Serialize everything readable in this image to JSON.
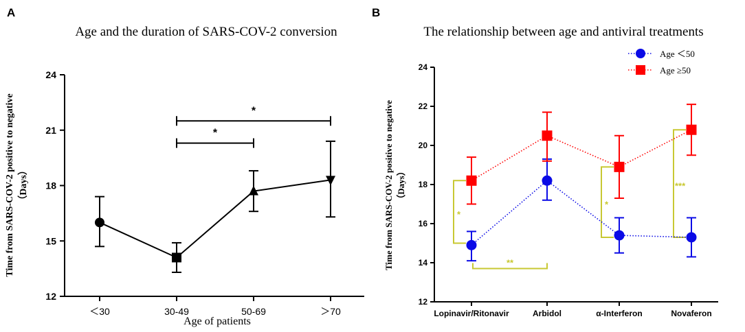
{
  "chart_data": [
    {
      "panel": "A",
      "type": "line",
      "title": "Age and the duration of SARS-COV-2 conversion",
      "xlabel": "Age of patients",
      "ylabel": "Time from SARS-COV-2 positive to negative",
      "ylabel_unit": "（Days）",
      "categories": [
        "＜30",
        "30-49",
        "50-69",
        "＞70"
      ],
      "values": [
        16.0,
        14.1,
        17.7,
        18.3
      ],
      "err_upper": [
        17.4,
        14.9,
        18.8,
        20.4
      ],
      "err_lower": [
        14.7,
        13.3,
        16.6,
        16.3
      ],
      "markers": [
        "circle",
        "square",
        "triangle-up",
        "triangle-down"
      ],
      "ylim": [
        12,
        24
      ],
      "yticks": [
        12,
        15,
        18,
        21,
        24
      ],
      "significance": [
        {
          "from": 1,
          "to": 2,
          "y": 20.3,
          "label": "*"
        },
        {
          "from": 1,
          "to": 3,
          "y": 21.5,
          "label": "*"
        }
      ]
    },
    {
      "panel": "B",
      "type": "line",
      "title": "The relationship between age and antiviral treatments",
      "xlabel": "",
      "ylabel": "Time from SARS-COV-2 positive to negative",
      "ylabel_unit": "（Days）",
      "categories": [
        "Lopinavir/Ritonavir",
        "Arbidol",
        "α-Interferon",
        "Novaferon"
      ],
      "ylim": [
        12,
        24
      ],
      "yticks": [
        12,
        14,
        16,
        18,
        20,
        22,
        24
      ],
      "series": [
        {
          "name": "Age ＜50",
          "color": "#0a0ae6",
          "marker": "circle",
          "values": [
            14.9,
            18.2,
            15.4,
            15.3
          ],
          "err_upper": [
            15.6,
            19.3,
            16.3,
            16.3
          ],
          "err_lower": [
            14.1,
            17.2,
            14.5,
            14.3
          ]
        },
        {
          "name": "Age ≥50",
          "color": "#ff0000",
          "marker": "square",
          "values": [
            18.2,
            20.5,
            18.9,
            20.8
          ],
          "err_upper": [
            19.4,
            21.7,
            20.5,
            22.1
          ],
          "err_lower": [
            17.0,
            19.2,
            17.3,
            19.5
          ]
        }
      ],
      "significance": [
        {
          "kind": "vertical",
          "cat": 0,
          "low": 15.0,
          "high": 18.2,
          "label": "*"
        },
        {
          "kind": "vertical",
          "cat": 2,
          "low": 15.3,
          "high": 18.9,
          "label": "*"
        },
        {
          "kind": "vertical",
          "cat": 3,
          "low": 15.3,
          "high": 20.8,
          "label": "***"
        },
        {
          "kind": "horizontal",
          "from": 0,
          "to": 1,
          "y": 13.7,
          "label": "**"
        }
      ],
      "sig_color": "#c8c832"
    }
  ]
}
